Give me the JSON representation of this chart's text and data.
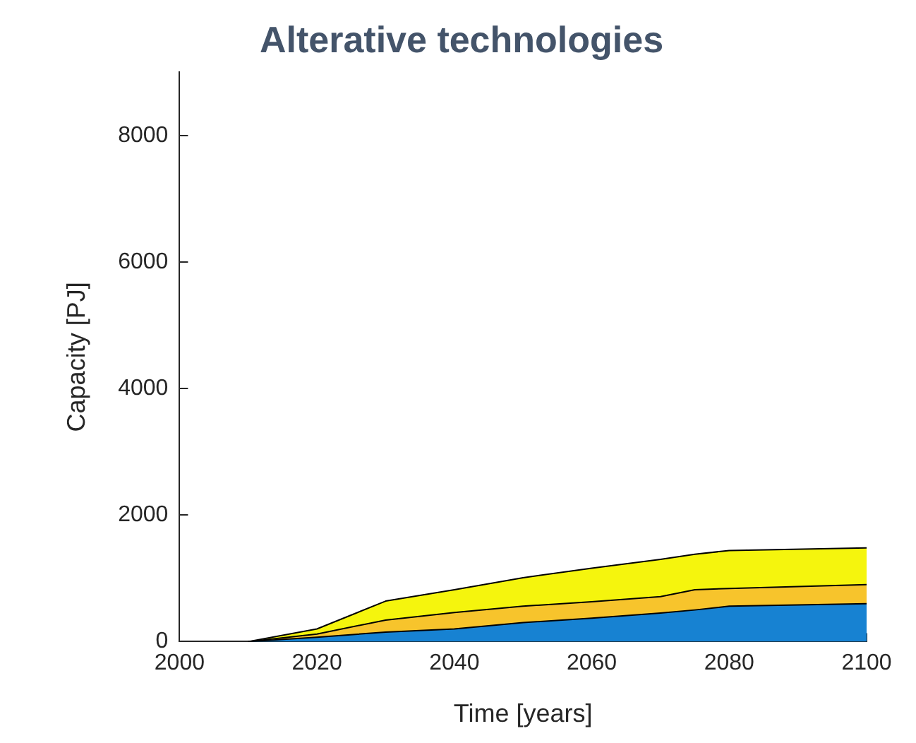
{
  "chart_data": {
    "type": "area",
    "title": "Alterative technologies",
    "xlabel": "Time [years]",
    "ylabel": "Capacity [PJ]",
    "stacked": true,
    "x": [
      2010,
      2020,
      2030,
      2040,
      2050,
      2060,
      2070,
      2075,
      2080,
      2100
    ],
    "series": [
      {
        "color": "#1782d2",
        "values": [
          0,
          70,
          150,
          200,
          300,
          370,
          450,
          500,
          560,
          600
        ]
      },
      {
        "color": "#f7c42c",
        "values": [
          0,
          50,
          190,
          260,
          260,
          260,
          260,
          320,
          280,
          300
        ]
      },
      {
        "color": "#f5f50d",
        "values": [
          0,
          80,
          300,
          360,
          450,
          530,
          590,
          560,
          600,
          580
        ]
      }
    ],
    "xlim": [
      2000,
      2100
    ],
    "xticks": [
      2000,
      2020,
      2040,
      2060,
      2080,
      2100
    ],
    "ylim": [
      0,
      9000
    ],
    "yticks": [
      0,
      2000,
      4000,
      6000,
      8000
    ],
    "grid": false,
    "legend": false
  }
}
